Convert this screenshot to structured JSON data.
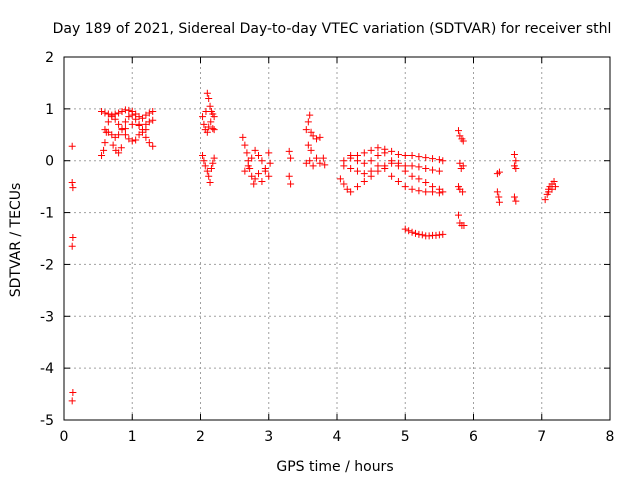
{
  "chart_data": {
    "type": "scatter",
    "title": "Day 189 of 2021, Sidereal Day-to-day VTEC variation (SDTVAR) for receiver sthl",
    "xlabel": "GPS time / hours",
    "ylabel": "SDTVAR / TECUs",
    "xlim": [
      0,
      8
    ],
    "ylim": [
      -5,
      2
    ],
    "xticks": [
      0,
      1,
      2,
      3,
      4,
      5,
      6,
      7,
      8
    ],
    "yticks": [
      -5,
      -4,
      -3,
      -2,
      -1,
      0,
      1,
      2
    ],
    "xtick_labels": [
      "0",
      "1",
      "2",
      "3",
      "4",
      "5",
      "6",
      "7",
      "8"
    ],
    "ytick_labels": [
      "-5",
      "-4",
      "-3",
      "-2",
      "-1",
      "0",
      "1",
      "2"
    ],
    "grid": true,
    "marker": "+",
    "color": "#ff0000",
    "series": [
      {
        "name": "sthl",
        "points": [
          [
            0.12,
            0.28
          ],
          [
            0.12,
            -0.42
          ],
          [
            0.13,
            -0.52
          ],
          [
            0.13,
            -1.48
          ],
          [
            0.12,
            -1.65
          ],
          [
            0.13,
            -4.47
          ],
          [
            0.12,
            -4.63
          ],
          [
            0.55,
            0.1
          ],
          [
            0.58,
            0.2
          ],
          [
            0.6,
            0.35
          ],
          [
            0.62,
            0.55
          ],
          [
            0.65,
            0.75
          ],
          [
            0.7,
            0.85
          ],
          [
            0.75,
            0.9
          ],
          [
            0.8,
            0.92
          ],
          [
            0.85,
            0.95
          ],
          [
            0.9,
            0.98
          ],
          [
            0.95,
            0.97
          ],
          [
            1.0,
            0.95
          ],
          [
            1.05,
            0.9
          ],
          [
            1.1,
            0.85
          ],
          [
            1.15,
            0.82
          ],
          [
            1.2,
            0.88
          ],
          [
            1.25,
            0.92
          ],
          [
            1.3,
            0.95
          ],
          [
            0.55,
            0.95
          ],
          [
            0.6,
            0.92
          ],
          [
            0.65,
            0.9
          ],
          [
            0.7,
            0.88
          ],
          [
            0.75,
            0.8
          ],
          [
            0.8,
            0.7
          ],
          [
            0.85,
            0.6
          ],
          [
            0.9,
            0.5
          ],
          [
            0.95,
            0.42
          ],
          [
            1.0,
            0.38
          ],
          [
            1.05,
            0.4
          ],
          [
            1.1,
            0.5
          ],
          [
            1.15,
            0.6
          ],
          [
            1.2,
            0.7
          ],
          [
            1.25,
            0.75
          ],
          [
            1.3,
            0.78
          ],
          [
            0.6,
            0.6
          ],
          [
            0.65,
            0.55
          ],
          [
            0.7,
            0.5
          ],
          [
            0.75,
            0.45
          ],
          [
            0.8,
            0.5
          ],
          [
            0.85,
            0.62
          ],
          [
            0.9,
            0.75
          ],
          [
            0.95,
            0.85
          ],
          [
            1.0,
            0.88
          ],
          [
            1.05,
            0.8
          ],
          [
            1.1,
            0.7
          ],
          [
            1.15,
            0.55
          ],
          [
            1.2,
            0.45
          ],
          [
            1.25,
            0.35
          ],
          [
            1.3,
            0.28
          ],
          [
            0.72,
            0.3
          ],
          [
            0.76,
            0.2
          ],
          [
            0.8,
            0.15
          ],
          [
            0.84,
            0.25
          ],
          [
            0.9,
            0.62
          ],
          [
            1.0,
            0.7
          ],
          [
            1.1,
            0.68
          ],
          [
            1.2,
            0.6
          ],
          [
            2.03,
            0.85
          ],
          [
            2.05,
            0.7
          ],
          [
            2.07,
            0.6
          ],
          [
            2.1,
            0.55
          ],
          [
            2.12,
            0.65
          ],
          [
            2.15,
            0.75
          ],
          [
            2.18,
            0.62
          ],
          [
            2.2,
            0.6
          ],
          [
            2.1,
            1.3
          ],
          [
            2.12,
            1.2
          ],
          [
            2.14,
            1.05
          ],
          [
            2.16,
            0.95
          ],
          [
            2.18,
            0.9
          ],
          [
            2.2,
            0.85
          ],
          [
            2.08,
            0.95
          ],
          [
            2.03,
            0.1
          ],
          [
            2.05,
            0.0
          ],
          [
            2.07,
            -0.1
          ],
          [
            2.1,
            -0.2
          ],
          [
            2.12,
            -0.3
          ],
          [
            2.14,
            -0.42
          ],
          [
            2.16,
            -0.15
          ],
          [
            2.18,
            -0.05
          ],
          [
            2.2,
            0.05
          ],
          [
            2.62,
            0.45
          ],
          [
            2.65,
            0.3
          ],
          [
            2.68,
            0.15
          ],
          [
            2.7,
            0.0
          ],
          [
            2.72,
            -0.15
          ],
          [
            2.75,
            -0.3
          ],
          [
            2.78,
            -0.45
          ],
          [
            2.65,
            -0.2
          ],
          [
            2.7,
            -0.1
          ],
          [
            2.75,
            0.05
          ],
          [
            2.8,
            0.2
          ],
          [
            2.85,
            0.1
          ],
          [
            2.9,
            0.0
          ],
          [
            2.95,
            -0.15
          ],
          [
            3.0,
            -0.3
          ],
          [
            2.8,
            -0.35
          ],
          [
            2.85,
            -0.25
          ],
          [
            2.9,
            -0.4
          ],
          [
            2.95,
            -0.2
          ],
          [
            3.0,
            0.15
          ],
          [
            3.02,
            -0.05
          ],
          [
            3.3,
            0.18
          ],
          [
            3.32,
            0.05
          ],
          [
            3.3,
            -0.3
          ],
          [
            3.32,
            -0.45
          ],
          [
            3.55,
            0.6
          ],
          [
            3.58,
            0.75
          ],
          [
            3.6,
            0.88
          ],
          [
            3.62,
            0.55
          ],
          [
            3.65,
            0.48
          ],
          [
            3.7,
            0.42
          ],
          [
            3.75,
            0.45
          ],
          [
            3.58,
            0.3
          ],
          [
            3.62,
            0.2
          ],
          [
            3.55,
            -0.05
          ],
          [
            3.6,
            0.0
          ],
          [
            3.65,
            -0.1
          ],
          [
            3.7,
            0.05
          ],
          [
            3.75,
            -0.05
          ],
          [
            3.8,
            0.05
          ],
          [
            3.82,
            -0.08
          ],
          [
            4.05,
            -0.35
          ],
          [
            4.1,
            -0.45
          ],
          [
            4.15,
            -0.55
          ],
          [
            4.2,
            -0.6
          ],
          [
            4.3,
            -0.5
          ],
          [
            4.4,
            -0.4
          ],
          [
            4.5,
            -0.3
          ],
          [
            4.6,
            -0.2
          ],
          [
            4.7,
            -0.1
          ],
          [
            4.8,
            -0.05
          ],
          [
            4.9,
            -0.1
          ],
          [
            5.0,
            -0.2
          ],
          [
            5.1,
            -0.3
          ],
          [
            5.2,
            -0.35
          ],
          [
            5.3,
            -0.42
          ],
          [
            5.4,
            -0.5
          ],
          [
            5.5,
            -0.55
          ],
          [
            5.55,
            -0.6
          ],
          [
            4.1,
            0.0
          ],
          [
            4.2,
            0.05
          ],
          [
            4.3,
            0.1
          ],
          [
            4.4,
            0.15
          ],
          [
            4.5,
            0.2
          ],
          [
            4.6,
            0.25
          ],
          [
            4.7,
            0.22
          ],
          [
            4.8,
            0.18
          ],
          [
            4.9,
            0.12
          ],
          [
            5.0,
            0.1
          ],
          [
            5.1,
            0.1
          ],
          [
            5.2,
            0.08
          ],
          [
            5.3,
            0.06
          ],
          [
            5.4,
            0.04
          ],
          [
            5.5,
            0.02
          ],
          [
            5.55,
            0.0
          ],
          [
            4.1,
            -0.1
          ],
          [
            4.2,
            -0.15
          ],
          [
            4.3,
            -0.2
          ],
          [
            4.4,
            -0.25
          ],
          [
            4.5,
            -0.2
          ],
          [
            4.6,
            -0.1
          ],
          [
            4.7,
            -0.15
          ],
          [
            4.8,
            -0.3
          ],
          [
            4.9,
            -0.4
          ],
          [
            5.0,
            -0.5
          ],
          [
            5.1,
            -0.55
          ],
          [
            5.2,
            -0.58
          ],
          [
            5.3,
            -0.6
          ],
          [
            5.4,
            -0.6
          ],
          [
            5.5,
            -0.62
          ],
          [
            4.2,
            0.1
          ],
          [
            4.3,
            0.0
          ],
          [
            4.4,
            -0.05
          ],
          [
            4.5,
            0.0
          ],
          [
            4.6,
            0.1
          ],
          [
            4.7,
            0.15
          ],
          [
            4.8,
            0.0
          ],
          [
            4.9,
            -0.05
          ],
          [
            5.0,
            -0.1
          ],
          [
            5.1,
            -0.1
          ],
          [
            5.2,
            -0.12
          ],
          [
            5.3,
            -0.15
          ],
          [
            5.4,
            -0.18
          ],
          [
            5.5,
            -0.2
          ],
          [
            5.0,
            -1.32
          ],
          [
            5.05,
            -1.35
          ],
          [
            5.1,
            -1.38
          ],
          [
            5.15,
            -1.4
          ],
          [
            5.2,
            -1.42
          ],
          [
            5.25,
            -1.43
          ],
          [
            5.3,
            -1.45
          ],
          [
            5.35,
            -1.45
          ],
          [
            5.4,
            -1.44
          ],
          [
            5.45,
            -1.44
          ],
          [
            5.5,
            -1.43
          ],
          [
            5.55,
            -1.42
          ],
          [
            5.78,
            0.58
          ],
          [
            5.8,
            0.48
          ],
          [
            5.83,
            0.42
          ],
          [
            5.85,
            0.38
          ],
          [
            5.8,
            -0.05
          ],
          [
            5.82,
            -0.15
          ],
          [
            5.85,
            -0.1
          ],
          [
            5.78,
            -0.5
          ],
          [
            5.8,
            -0.55
          ],
          [
            5.84,
            -0.6
          ],
          [
            5.78,
            -1.05
          ],
          [
            5.8,
            -1.2
          ],
          [
            5.83,
            -1.25
          ],
          [
            5.86,
            -1.25
          ],
          [
            6.35,
            -0.25
          ],
          [
            6.38,
            -0.22
          ],
          [
            6.35,
            -0.6
          ],
          [
            6.37,
            -0.7
          ],
          [
            6.38,
            -0.8
          ],
          [
            6.6,
            0.12
          ],
          [
            6.62,
            0.0
          ],
          [
            6.6,
            -0.1
          ],
          [
            6.62,
            -0.15
          ],
          [
            6.6,
            -0.7
          ],
          [
            6.62,
            -0.78
          ],
          [
            7.05,
            -0.75
          ],
          [
            7.08,
            -0.65
          ],
          [
            7.1,
            -0.55
          ],
          [
            7.12,
            -0.5
          ],
          [
            7.15,
            -0.45
          ],
          [
            7.18,
            -0.4
          ],
          [
            7.1,
            -0.6
          ],
          [
            7.15,
            -0.55
          ],
          [
            7.2,
            -0.5
          ]
        ]
      }
    ]
  }
}
